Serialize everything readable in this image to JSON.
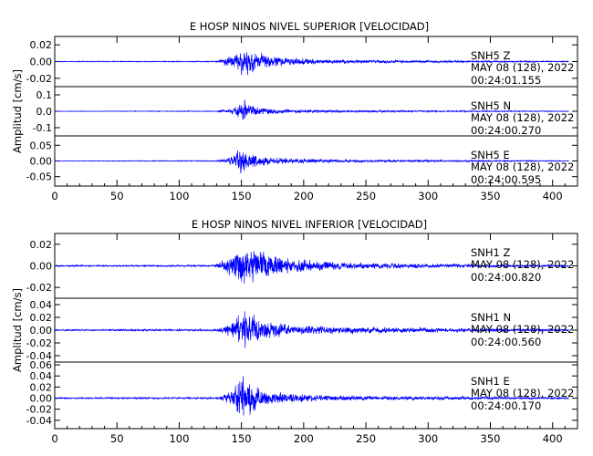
{
  "chart_data": [
    {
      "type": "line",
      "title": "E HOSP NINOS NIVEL SUPERIOR [VELOCIDAD]",
      "ylabel": "Amplitud [cm/s]",
      "xlim": [
        0,
        420
      ],
      "x_ticks": [
        "0",
        "50",
        "100",
        "150",
        "200",
        "250",
        "300",
        "350",
        "400"
      ],
      "panels": [
        {
          "channel": "SNH5   Z",
          "date": "MAY 08 (128), 2022",
          "time": "00:24:01.155",
          "ylim": [
            -0.03,
            0.03
          ],
          "y_ticks": [
            0.02,
            0.0,
            -0.02
          ],
          "y_tick_labels": [
            "0.02",
            "0.00",
            "-0.02"
          ],
          "envelope": [
            [
              0,
              0.0006
            ],
            [
              130,
              0.0008
            ],
            [
              140,
              0.008
            ],
            [
              147,
              0.014
            ],
            [
              150,
              0.018
            ],
            [
              152,
              0.022
            ],
            [
              158,
              0.017
            ],
            [
              170,
              0.01
            ],
            [
              185,
              0.006
            ],
            [
              220,
              0.003
            ],
            [
              300,
              0.0015
            ],
            [
              413,
              0.0008
            ]
          ],
          "seed": 11
        },
        {
          "channel": "SNH5   N",
          "date": "MAY 08 (128), 2022",
          "time": "00:24:00.270",
          "ylim": [
            -0.15,
            0.15
          ],
          "y_ticks": [
            0.1,
            0.0,
            -0.1
          ],
          "y_tick_labels": [
            "0.1",
            "0.0",
            "-0.1"
          ],
          "envelope": [
            [
              0,
              0.002
            ],
            [
              130,
              0.003
            ],
            [
              142,
              0.02
            ],
            [
              148,
              0.06
            ],
            [
              151,
              0.085
            ],
            [
              155,
              0.06
            ],
            [
              165,
              0.03
            ],
            [
              185,
              0.015
            ],
            [
              230,
              0.008
            ],
            [
              413,
              0.003
            ]
          ],
          "seed": 23
        },
        {
          "channel": "SNH5   E",
          "date": "MAY 08 (128), 2022",
          "time": "00:24:00.595",
          "ylim": [
            -0.08,
            0.08
          ],
          "y_ticks": [
            0.05,
            0.0,
            -0.05
          ],
          "y_tick_labels": [
            "0.05",
            "0.00",
            "-0.05"
          ],
          "envelope": [
            [
              0,
              0.001
            ],
            [
              130,
              0.002
            ],
            [
              142,
              0.015
            ],
            [
              148,
              0.045
            ],
            [
              150,
              0.065
            ],
            [
              154,
              0.04
            ],
            [
              165,
              0.02
            ],
            [
              190,
              0.01
            ],
            [
              240,
              0.005
            ],
            [
              413,
              0.002
            ]
          ],
          "seed": 37
        }
      ]
    },
    {
      "type": "line",
      "title": "E HOSP NINOS NIVEL INFERIOR [VELOCIDAD]",
      "ylabel": "Amplitud [cm/s]",
      "xlim": [
        0,
        420
      ],
      "x_ticks": [
        "0",
        "50",
        "100",
        "150",
        "200",
        "250",
        "300",
        "350",
        "400"
      ],
      "panels": [
        {
          "channel": "SNH1   Z",
          "date": "MAY 08 (128), 2022",
          "time": "00:24:00.820",
          "ylim": [
            -0.03,
            0.03
          ],
          "y_ticks": [
            0.02,
            0.0,
            -0.02
          ],
          "y_tick_labels": [
            "0.02",
            "0.00",
            "-0.02"
          ],
          "envelope": [
            [
              0,
              0.0008
            ],
            [
              128,
              0.001
            ],
            [
              138,
              0.008
            ],
            [
              147,
              0.018
            ],
            [
              152,
              0.024
            ],
            [
              160,
              0.02
            ],
            [
              175,
              0.012
            ],
            [
              195,
              0.007
            ],
            [
              240,
              0.004
            ],
            [
              320,
              0.002
            ],
            [
              413,
              0.001
            ]
          ],
          "seed": 53
        },
        {
          "channel": "SNH1   N",
          "date": "MAY 08 (128), 2022",
          "time": "00:24:00.560",
          "ylim": [
            -0.05,
            0.05
          ],
          "y_ticks": [
            0.04,
            0.02,
            0.0,
            -0.02,
            -0.04
          ],
          "y_tick_labels": [
            "0.04",
            "0.02",
            "0.00",
            "-0.02",
            "-0.04"
          ],
          "envelope": [
            [
              0,
              0.0015
            ],
            [
              130,
              0.002
            ],
            [
              140,
              0.012
            ],
            [
              148,
              0.03
            ],
            [
              152,
              0.042
            ],
            [
              158,
              0.03
            ],
            [
              170,
              0.018
            ],
            [
              190,
              0.01
            ],
            [
              240,
              0.006
            ],
            [
              413,
              0.002
            ]
          ],
          "seed": 71
        },
        {
          "channel": "SNH1   E",
          "date": "MAY 08 (128), 2022",
          "time": "00:24:00.170",
          "ylim": [
            -0.055,
            0.065
          ],
          "y_ticks": [
            0.06,
            0.04,
            0.02,
            0.0,
            -0.02,
            -0.04
          ],
          "y_tick_labels": [
            "0.06",
            "0.04",
            "0.02",
            "0.00",
            "-0.02",
            "-0.04"
          ],
          "envelope": [
            [
              0,
              0.0015
            ],
            [
              130,
              0.002
            ],
            [
              142,
              0.015
            ],
            [
              148,
              0.04
            ],
            [
              151,
              0.06
            ],
            [
              156,
              0.035
            ],
            [
              168,
              0.018
            ],
            [
              190,
              0.01
            ],
            [
              240,
              0.005
            ],
            [
              413,
              0.002
            ]
          ],
          "seed": 89
        }
      ]
    }
  ],
  "colors": {
    "trace": "#0000ff",
    "axis": "#000000",
    "background": "#ffffff"
  }
}
